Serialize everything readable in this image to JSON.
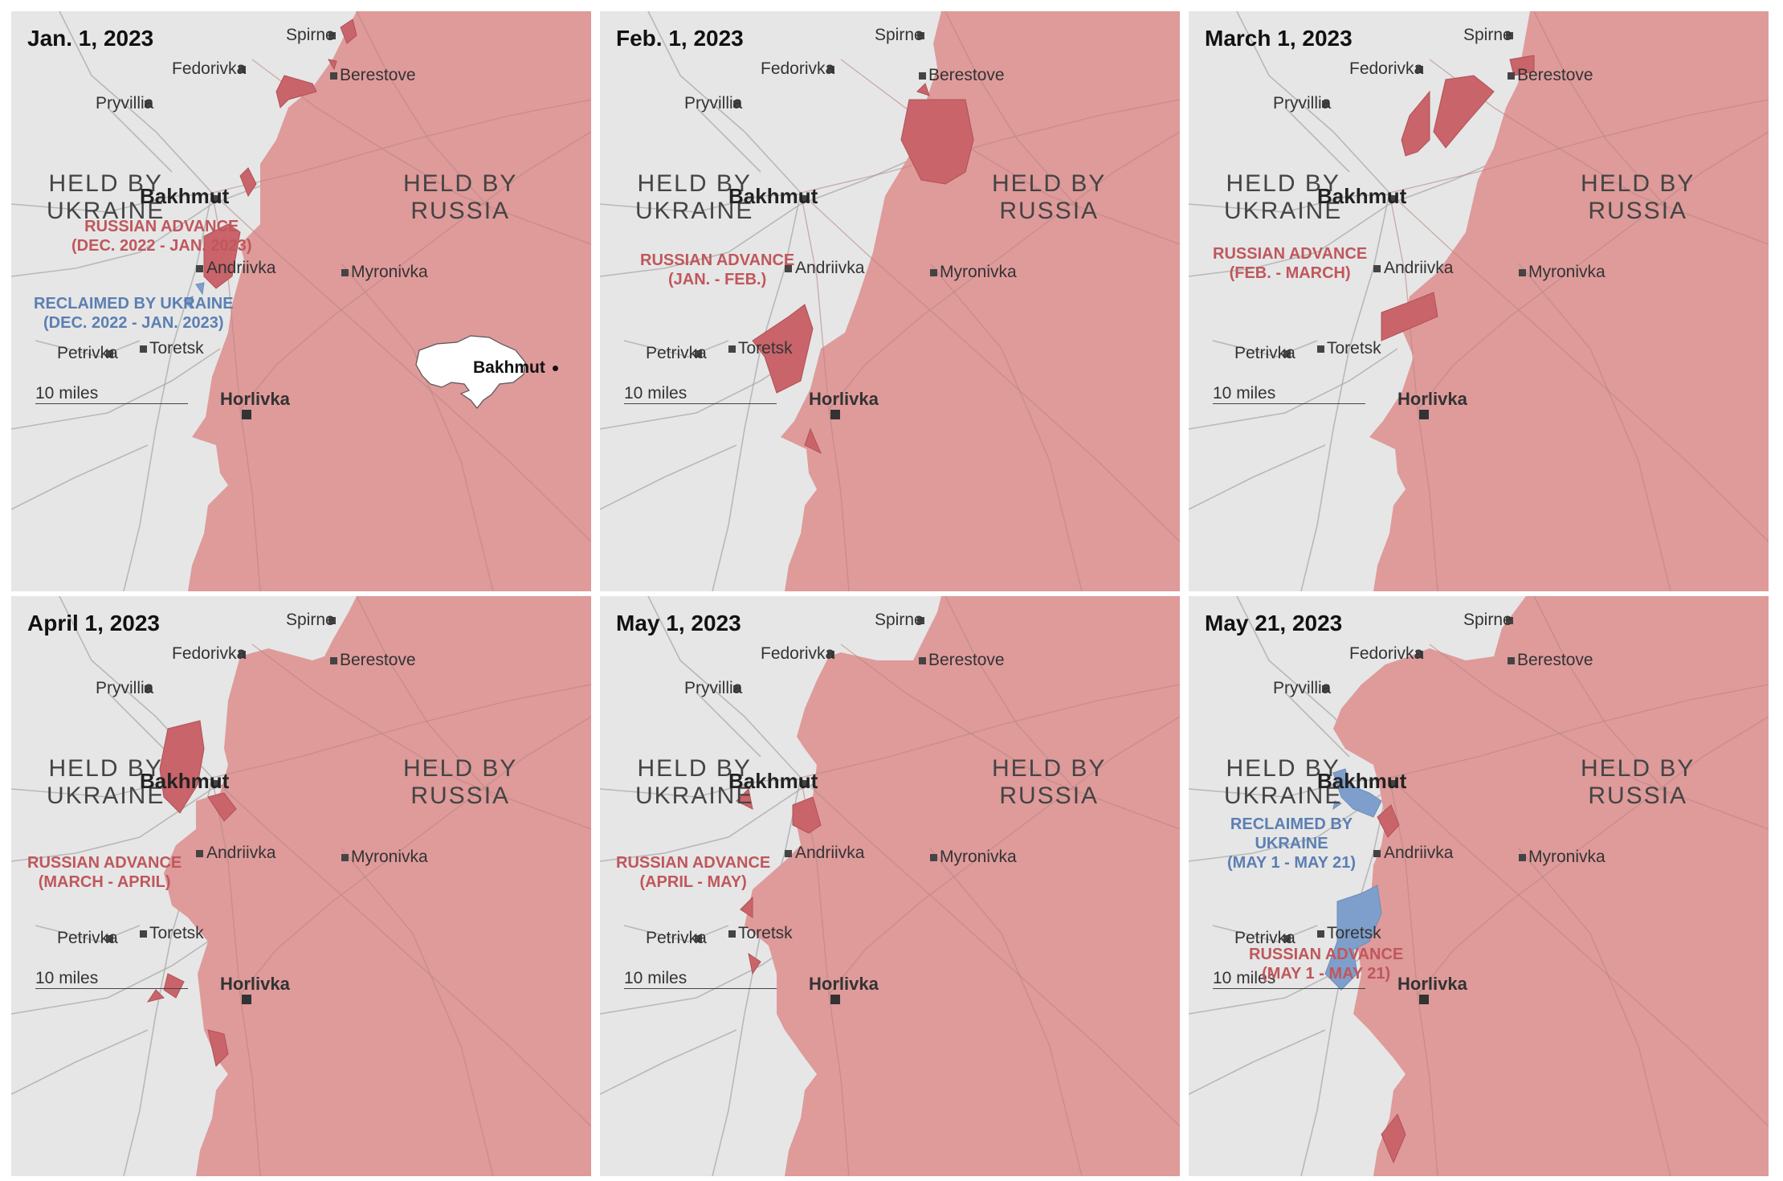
{
  "colors": {
    "ukraine": "#e6e6e6",
    "russia": "#df9a9a",
    "russian_advance": "#c8646a",
    "reclaimed": "#7e9fcb",
    "advance_label": "#c0575c",
    "reclaimed_label": "#5b7fb3",
    "roads": "#a8a8a8",
    "river": "#c7c7c7"
  },
  "common": {
    "held_ukraine": [
      "HELD BY",
      "UKRAINE"
    ],
    "held_russia": [
      "HELD BY",
      "RUSSIA"
    ],
    "scale": "10 miles",
    "towns": {
      "spirne": "Spirne",
      "fedorivka": "Fedorivka",
      "berestove": "Berestove",
      "pryvillia": "Pryvillia",
      "bakhmut": "Bakhmut",
      "andriivka": "Andriivka",
      "myronivka": "Myronivka",
      "petrivka": "Petrivka",
      "toretsk": "Toretsk",
      "horlivka": "Horlivka"
    }
  },
  "inset": {
    "label": "Bakhmut"
  },
  "panels": [
    {
      "date": "Jan. 1, 2023",
      "annotations": [
        {
          "kind": "advance",
          "lines": [
            "RUSSIAN ADVANCE",
            "(DEC. 2022 - JAN. 2023)"
          ]
        },
        {
          "kind": "reclaimed",
          "lines": [
            "RECLAIMED BY UKRAINE",
            "(DEC. 2022 - JAN. 2023)"
          ]
        }
      ]
    },
    {
      "date": "Feb. 1, 2023",
      "annotations": [
        {
          "kind": "advance",
          "lines": [
            "RUSSIAN ADVANCE",
            "(JAN. - FEB.)"
          ]
        }
      ]
    },
    {
      "date": "March 1, 2023",
      "annotations": [
        {
          "kind": "advance",
          "lines": [
            "RUSSIAN ADVANCE",
            "(FEB. - MARCH)"
          ]
        }
      ]
    },
    {
      "date": "April 1, 2023",
      "annotations": [
        {
          "kind": "advance",
          "lines": [
            "RUSSIAN ADVANCE",
            "(MARCH - APRIL)"
          ]
        }
      ]
    },
    {
      "date": "May 1, 2023",
      "annotations": [
        {
          "kind": "advance",
          "lines": [
            "RUSSIAN ADVANCE",
            "(APRIL - MAY)"
          ]
        }
      ]
    },
    {
      "date": "May 21, 2023",
      "annotations": [
        {
          "kind": "reclaimed",
          "lines": [
            "RECLAIMED BY",
            "UKRAINE",
            "(MAY 1 - MAY 21)"
          ]
        },
        {
          "kind": "advance",
          "lines": [
            "RUSSIAN ADVANCE",
            "(MAY 1 - MAY 21)"
          ]
        }
      ]
    }
  ]
}
